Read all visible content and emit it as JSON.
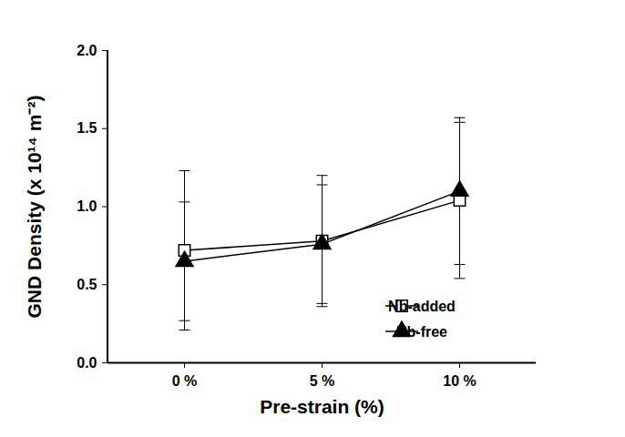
{
  "chart_data": {
    "type": "line",
    "x_label": "Pre-strain (%)",
    "y_label": "GND Density (x 10¹⁴ m⁻²)",
    "categories": [
      "0 %",
      "5 %",
      "10 %"
    ],
    "series": [
      {
        "name": "Nb-added",
        "color": "#000000",
        "marker": "square",
        "values": [
          0.72,
          0.78,
          1.04
        ],
        "errors": [
          0.51,
          0.42,
          0.5
        ]
      },
      {
        "name": "Nb-free",
        "color": "#000000",
        "marker": "triangle",
        "values": [
          0.65,
          0.76,
          1.1
        ],
        "errors": [
          0.38,
          0.38,
          0.47
        ]
      }
    ],
    "ylim": [
      0,
      2
    ],
    "yticks": [
      {
        "value": 0,
        "label": "0.0"
      },
      {
        "value": 0.5,
        "label": "0.5"
      },
      {
        "value": 1,
        "label": "1.0"
      },
      {
        "value": 1.5,
        "label": "1.5"
      },
      {
        "value": 2,
        "label": "2.0"
      }
    ],
    "grid": false,
    "legend": "lower right"
  }
}
